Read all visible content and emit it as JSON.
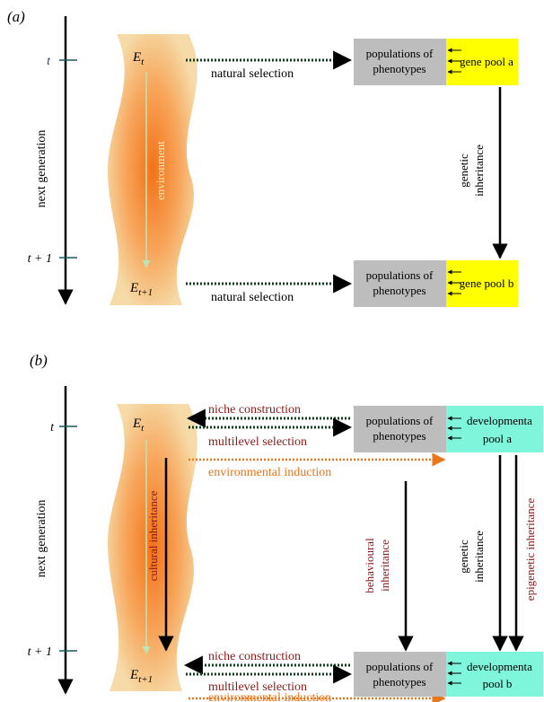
{
  "panel_a": {
    "label": "(a)",
    "axis_label": "next generation",
    "tick_t": "t",
    "tick_t1": "t + 1",
    "env_top": "E",
    "env_top_sub": "t",
    "env_bottom": "E",
    "env_bottom_sub": "t+1",
    "env_word": "environment",
    "arrow_top_label": "natural selection",
    "arrow_bottom_label": "natural selection",
    "box_top_line1": "populations of",
    "box_top_line2": "phenotypes",
    "pool_top": "gene pool a",
    "box_bottom_line1": "populations of",
    "box_bottom_line2": "phenotypes",
    "pool_bottom": "gene pool b",
    "inherit_line1": "genetic",
    "inherit_line2": "inheritance"
  },
  "panel_b": {
    "label": "(b)",
    "axis_label": "next generation",
    "tick_t": "t",
    "tick_t1": "t + 1",
    "env_top": "E",
    "env_top_sub": "t",
    "env_bottom": "E",
    "env_bottom_sub": "t+1",
    "cultural": "cultural inheritance",
    "niche_top": "niche construction",
    "multi_top": "multilevel selection",
    "induction_top": "environmental induction",
    "niche_bottom": "niche construction",
    "multi_bottom": "multilevel selection",
    "induction_bottom": "environmental induction",
    "box_top_line1": "populations of",
    "box_top_line2": "phenotypes",
    "pool_top_line1": "developmenta",
    "pool_top_line2": "pool a",
    "box_bottom_line1": "populations of",
    "box_bottom_line2": "phenotypes",
    "pool_bottom_line1": "developmenta",
    "pool_bottom_line2": "pool b",
    "behav_line1": "behavioural",
    "behav_line2": "inheritance",
    "genetic_line1": "genetic",
    "genetic_line2": "inheritance",
    "epigenetic": "epigenetic inheritance"
  },
  "colors": {
    "gray_box": "#bdbdbd",
    "yellow_pool": "#ffff00",
    "cyan_pool": "#7ff5dc",
    "dark_red": "#8b1a1a",
    "orange": "#e8761c",
    "teal_tick": "#1a5a5a",
    "dotted_green": "#0f3d1f"
  }
}
